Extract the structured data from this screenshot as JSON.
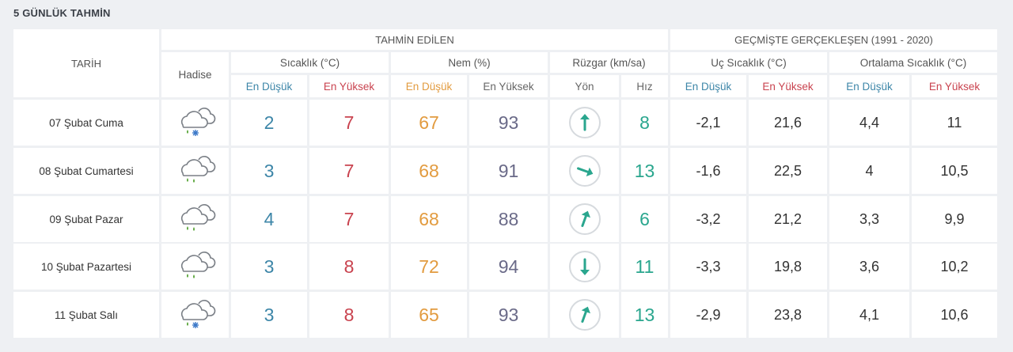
{
  "title": "5 GÜNLÜK TAHMİN",
  "header": {
    "tarih": "TARİH",
    "hadise": "Hadise",
    "tahmin_edilen": "TAHMİN EDİLEN",
    "gecmiste": "GEÇMİŞTE GERÇEKLEŞEN (1991 - 2020)",
    "sicaklik": "Sıcaklık (°C)",
    "nem": "Nem (%)",
    "ruzgar": "Rüzgar (km/sa)",
    "uc_sicaklik": "Uç Sıcaklık (°C)",
    "ortalama_sicaklik": "Ortalama Sıcaklık (°C)",
    "en_dusuk": "En Düşük",
    "en_yuksek": "En Yüksek",
    "yon": "Yön",
    "hiz": "Hız"
  },
  "rows": [
    {
      "date": "07 Şubat Cuma",
      "icon": "cloud-rain-snow-icon",
      "sic_min": "2",
      "sic_max": "7",
      "nem_min": "67",
      "nem_max": "93",
      "wind_dir_deg": 0,
      "wind_speed": "8",
      "uc_min": "-2,1",
      "uc_max": "21,6",
      "ort_min": "4,4",
      "ort_max": "11"
    },
    {
      "date": "08 Şubat Cumartesi",
      "icon": "cloud-rain-icon",
      "sic_min": "3",
      "sic_max": "7",
      "nem_min": "68",
      "nem_max": "91",
      "wind_dir_deg": 110,
      "wind_speed": "13",
      "uc_min": "-1,6",
      "uc_max": "22,5",
      "ort_min": "4",
      "ort_max": "10,5"
    },
    {
      "date": "09 Şubat Pazar",
      "icon": "cloud-rain-icon",
      "sic_min": "4",
      "sic_max": "7",
      "nem_min": "68",
      "nem_max": "88",
      "wind_dir_deg": 20,
      "wind_speed": "6",
      "uc_min": "-3,2",
      "uc_max": "21,2",
      "ort_min": "3,3",
      "ort_max": "9,9"
    },
    {
      "date": "10 Şubat Pazartesi",
      "icon": "cloud-rain-icon",
      "sic_min": "3",
      "sic_max": "8",
      "nem_min": "72",
      "nem_max": "94",
      "wind_dir_deg": 180,
      "wind_speed": "11",
      "uc_min": "-3,3",
      "uc_max": "19,8",
      "ort_min": "3,6",
      "ort_max": "10,2"
    },
    {
      "date": "11 Şubat Salı",
      "icon": "cloud-rain-snow-icon",
      "sic_min": "3",
      "sic_max": "8",
      "nem_min": "65",
      "nem_max": "93",
      "wind_dir_deg": 20,
      "wind_speed": "13",
      "uc_min": "-2,9",
      "uc_max": "23,8",
      "ort_min": "4,1",
      "ort_max": "10,6"
    }
  ],
  "colors": {
    "blue": "#3d86a8",
    "red": "#c9434f",
    "orange": "#e29b3f",
    "teal": "#2aa68e",
    "gray": "#6a6a88"
  }
}
